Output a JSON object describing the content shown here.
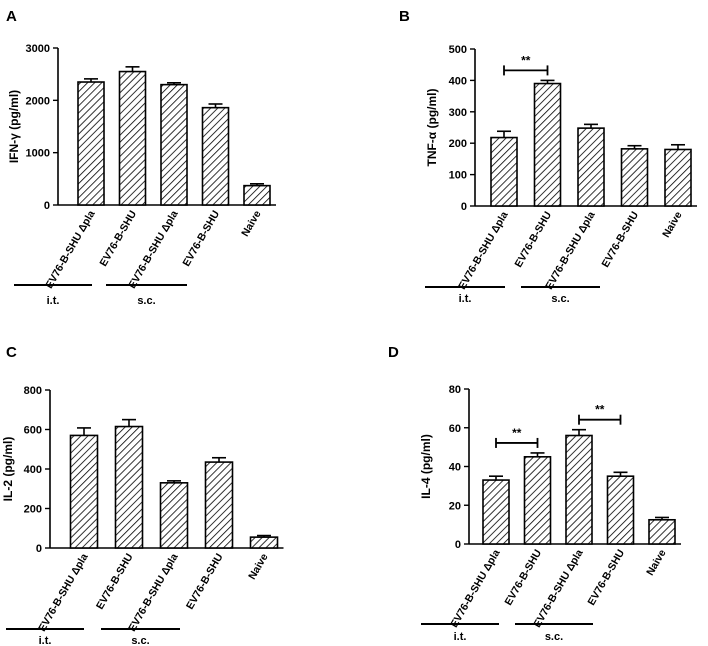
{
  "colors": {
    "ink": "#000000",
    "hatch": "#000000",
    "background": "#ffffff"
  },
  "chart_data": [
    {
      "panel": "A",
      "type": "bar",
      "categories": [
        "EV76-B-SHU Δpla",
        "EV76-B-SHU",
        "EV76-B-SHU Δpla",
        "EV76-B-SHU",
        "Naive"
      ],
      "values": [
        2350,
        2550,
        2300,
        1860,
        370
      ],
      "errors": [
        60,
        90,
        35,
        70,
        35
      ],
      "ylabel": "IFN-γ (pg/ml)",
      "ylim": [
        0,
        3000
      ],
      "yticks": [
        0,
        1000,
        2000,
        3000
      ],
      "groups": [
        {
          "label": "i.t.",
          "from": 0,
          "to": 1
        },
        {
          "label": "s.c.",
          "from": 2,
          "to": 3
        }
      ],
      "significance": []
    },
    {
      "panel": "B",
      "type": "bar",
      "categories": [
        "EV76-B-SHU Δpla",
        "EV76-B-SHU",
        "EV76-B-SHU Δpla",
        "EV76-B-SHU",
        "Naive"
      ],
      "values": [
        218,
        390,
        248,
        182,
        180
      ],
      "errors": [
        20,
        10,
        12,
        10,
        15
      ],
      "ylabel": "TNF-α (pg/ml)",
      "ylim": [
        0,
        500
      ],
      "yticks": [
        0,
        100,
        200,
        300,
        400,
        500
      ],
      "groups": [
        {
          "label": "i.t.",
          "from": 0,
          "to": 1
        },
        {
          "label": "s.c.",
          "from": 2,
          "to": 3
        }
      ],
      "significance": [
        {
          "from": 0,
          "to": 1,
          "label": "**"
        }
      ]
    },
    {
      "panel": "C",
      "type": "bar",
      "categories": [
        "EV76-B-SHU Δpla",
        "EV76-B-SHU",
        "EV76-B-SHU Δpla",
        "EV76-B-SHU",
        "Naive"
      ],
      "values": [
        570,
        615,
        330,
        435,
        55
      ],
      "errors": [
        38,
        35,
        10,
        22,
        8
      ],
      "ylabel": "IL-2 (pg/ml)",
      "ylim": [
        0,
        800
      ],
      "yticks": [
        0,
        200,
        400,
        600,
        800
      ],
      "groups": [
        {
          "label": "i.t.",
          "from": 0,
          "to": 1
        },
        {
          "label": "s.c.",
          "from": 2,
          "to": 3
        }
      ],
      "significance": []
    },
    {
      "panel": "D",
      "type": "bar",
      "categories": [
        "EV76-B-SHU Δpla",
        "EV76-B-SHU",
        "EV76-B-SHU Δpla",
        "EV76-B-SHU",
        "Naive"
      ],
      "values": [
        33,
        45,
        56,
        35,
        12.5
      ],
      "errors": [
        2,
        2,
        3,
        2,
        1.2
      ],
      "ylabel": "IL-4 (pg/ml)",
      "ylim": [
        0,
        80
      ],
      "yticks": [
        0,
        20,
        40,
        60,
        80
      ],
      "groups": [
        {
          "label": "i.t.",
          "from": 0,
          "to": 1
        },
        {
          "label": "s.c.",
          "from": 2,
          "to": 3
        }
      ],
      "significance": [
        {
          "from": 0,
          "to": 1,
          "label": "**"
        },
        {
          "from": 2,
          "to": 3,
          "label": "**"
        }
      ]
    }
  ]
}
